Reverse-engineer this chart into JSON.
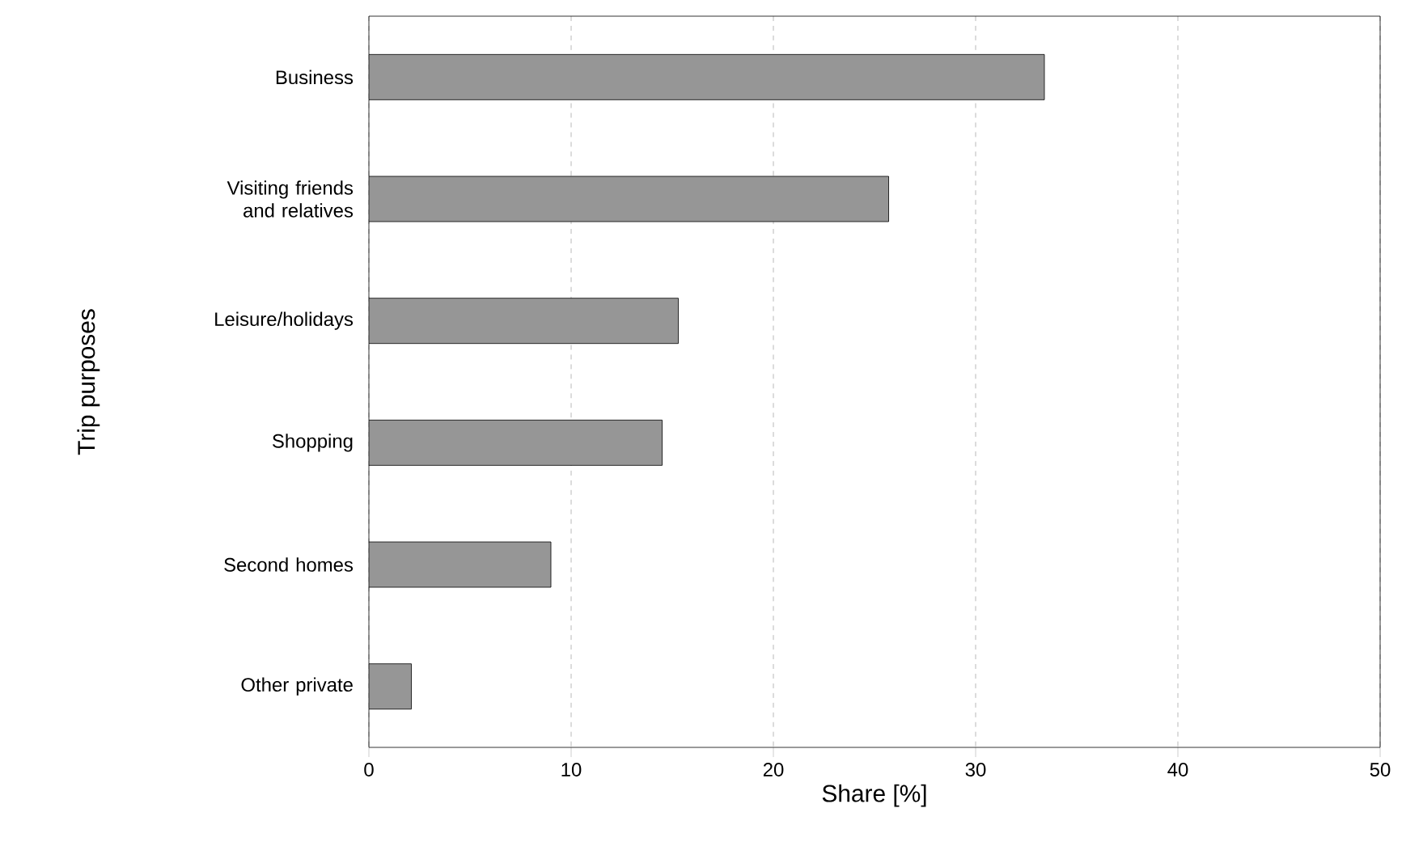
{
  "chart_data": {
    "type": "bar",
    "orientation": "horizontal",
    "xlabel": "Share [%]",
    "ylabel": "Trip purposes",
    "categories": [
      "Business",
      "Visiting friends and relatives",
      "Leisure/holidays",
      "Shopping",
      "Second homes",
      "Other private"
    ],
    "values": [
      33.4,
      25.7,
      15.3,
      14.5,
      9.0,
      2.1
    ],
    "color": "#969696",
    "xlim": [
      0,
      50
    ],
    "xticks": [
      0,
      10,
      20,
      30,
      40,
      50
    ],
    "grid": "x"
  }
}
